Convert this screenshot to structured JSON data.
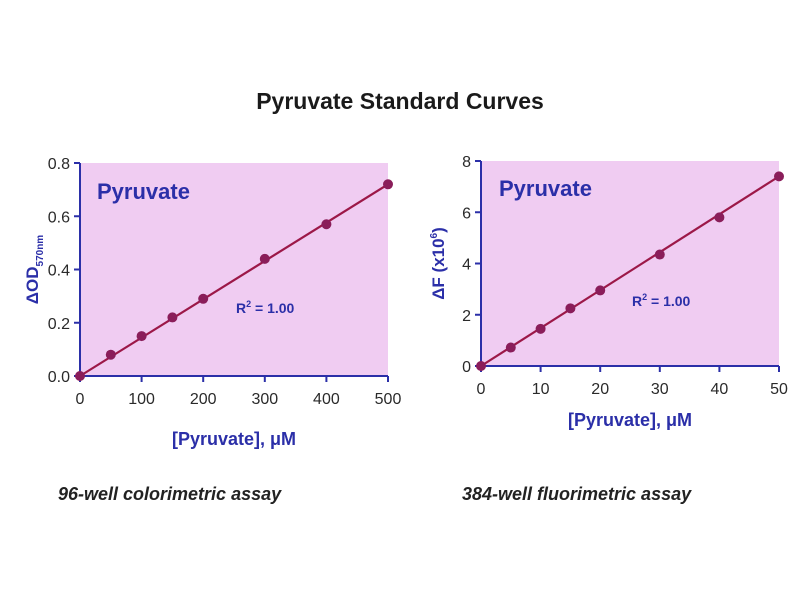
{
  "figure_title": "Pyruvate Standard Curves",
  "colors": {
    "plot_background": "#f0ccf2",
    "axis": "#2b2fa8",
    "line": "#9c1848",
    "marker": "#8a1d5a",
    "label_text": "#2b2fa8"
  },
  "chart_data": [
    {
      "type": "line",
      "panel_label": "Pyruvate",
      "annotation": {
        "prefix": "R",
        "superscript": "2",
        "suffix": " = 1.00"
      },
      "ylabel": {
        "prefix": "ΔOD",
        "subscript": "570nm",
        "suffix": ""
      },
      "xlabel": "[Pyruvate], μM",
      "caption": "96-well colorimetric assay",
      "xlim": [
        0,
        500
      ],
      "ylim": [
        0,
        0.8
      ],
      "xticks": [
        0,
        100,
        200,
        300,
        400,
        500
      ],
      "yticks": [
        0.0,
        0.2,
        0.4,
        0.6,
        0.8
      ],
      "ytick_labels": [
        "0.0",
        "0.2",
        "0.4",
        "0.6",
        "0.8"
      ],
      "grid": false,
      "series": [
        {
          "x": [
            0,
            50,
            100,
            150,
            200,
            300,
            400,
            500
          ],
          "y": [
            0.0,
            0.08,
            0.15,
            0.22,
            0.29,
            0.44,
            0.57,
            0.72
          ],
          "fit": {
            "x": [
              0,
              500
            ],
            "y": [
              0.0,
              0.72
            ]
          }
        }
      ]
    },
    {
      "type": "line",
      "panel_label": "Pyruvate",
      "annotation": {
        "prefix": "R",
        "superscript": "2",
        "suffix": " = 1.00"
      },
      "ylabel": {
        "prefix": "ΔF (x10",
        "superscript": "6",
        "suffix": ")"
      },
      "xlabel": "[Pyruvate], μM",
      "caption": "384-well fluorimetric assay",
      "xlim": [
        0,
        50
      ],
      "ylim": [
        0,
        8
      ],
      "xticks": [
        0,
        10,
        20,
        30,
        40,
        50
      ],
      "yticks": [
        0,
        2,
        4,
        6,
        8
      ],
      "ytick_labels": [
        "0",
        "2",
        "4",
        "6",
        "8"
      ],
      "grid": false,
      "series": [
        {
          "x": [
            0,
            5,
            10,
            15,
            20,
            30,
            40,
            50
          ],
          "y": [
            0.0,
            0.72,
            1.45,
            2.25,
            2.95,
            4.35,
            5.8,
            7.4
          ],
          "fit": {
            "x": [
              0,
              50
            ],
            "y": [
              0.0,
              7.4
            ]
          }
        }
      ]
    }
  ]
}
